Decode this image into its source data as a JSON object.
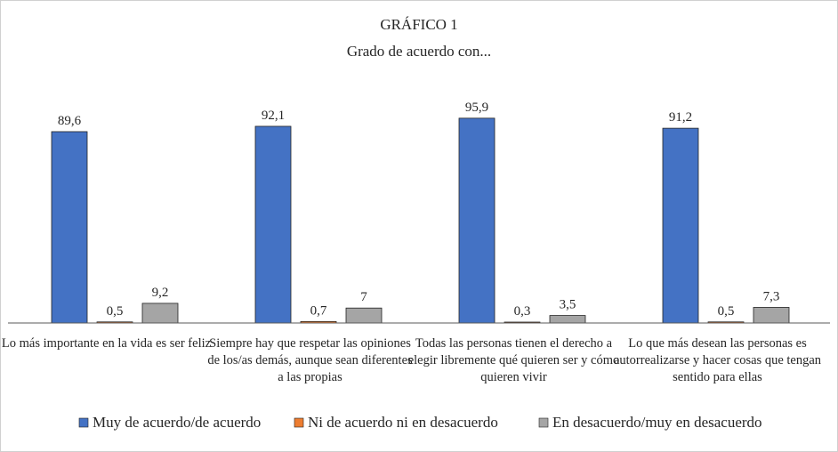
{
  "chart_data": {
    "type": "bar",
    "title": "GRÁFICO 1",
    "subtitle": "Grado de acuerdo con...",
    "categories": [
      [
        "Lo más importante en la vida es ser feliz"
      ],
      [
        "Siempre hay que respetar las opiniones",
        "de los/as demás, aunque sean diferentes",
        "a las propias"
      ],
      [
        "Todas las personas tienen el derecho a",
        "elegir libremente qué quieren ser y cómo",
        "quieren vivir"
      ],
      [
        "Lo que más desean las personas es",
        "autorrealizarse y hacer cosas que tengan",
        "sentido para ellas"
      ]
    ],
    "series": [
      {
        "name": "Muy de acuerdo/de acuerdo",
        "color": "#4472C4",
        "values": [
          89.6,
          92.1,
          95.9,
          91.2
        ],
        "labels": [
          "89,6",
          "92,1",
          "95,9",
          "91,2"
        ]
      },
      {
        "name": "Ni de acuerdo ni en desacuerdo",
        "color": "#ED7D31",
        "values": [
          0.5,
          0.7,
          0.3,
          0.5
        ],
        "labels": [
          "0,5",
          "0,7",
          "0,3",
          "0,5"
        ]
      },
      {
        "name": "En desacuerdo/muy en desacuerdo",
        "color": "#A5A5A5",
        "values": [
          9.2,
          7,
          3.5,
          7.3
        ],
        "labels": [
          "9,2",
          "7",
          "3,5",
          "7,3"
        ]
      }
    ],
    "ylim": [
      0,
      100
    ],
    "grid": false,
    "legend_position": "bottom"
  }
}
